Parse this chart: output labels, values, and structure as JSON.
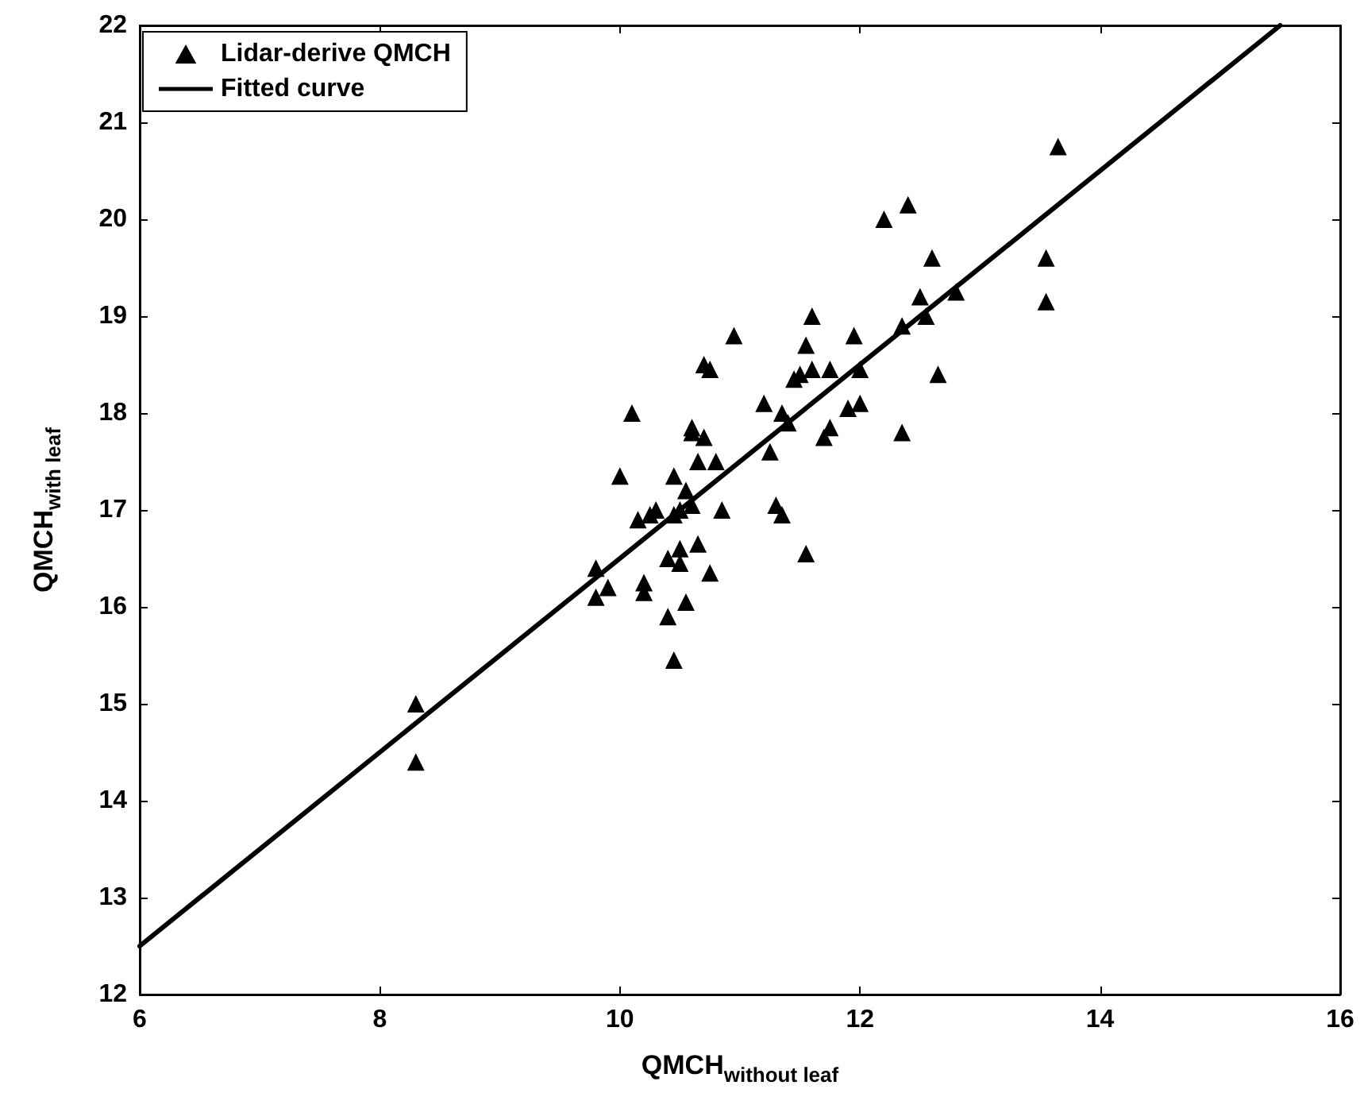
{
  "chart_data": {
    "type": "scatter",
    "xlabel": "QMCH$_{without leaf}$",
    "ylabel": "QMCH$_{with leaf}$",
    "xlim": [
      6,
      16
    ],
    "xticks": [
      6,
      8,
      10,
      12,
      14,
      16
    ],
    "ylim": [
      12,
      22
    ],
    "yticks": [
      12,
      13,
      14,
      15,
      16,
      17,
      18,
      19,
      20,
      21,
      22
    ],
    "grid": false,
    "legend": "top left",
    "marker": "triangle",
    "series": [
      {
        "name": "Lidar-derive QMCH",
        "color": "#000000",
        "x": [
          8.3,
          8.3,
          9.8,
          9.8,
          9.9,
          10.0,
          10.1,
          10.15,
          10.2,
          10.2,
          10.25,
          10.3,
          10.4,
          10.4,
          10.45,
          10.45,
          10.5,
          10.5,
          10.5,
          10.55,
          10.55,
          10.6,
          10.6,
          10.6,
          10.65,
          10.65,
          10.7,
          10.75,
          10.7,
          10.75,
          10.8,
          10.85,
          10.45,
          10.95,
          11.2,
          11.25,
          11.3,
          11.35,
          11.35,
          11.4,
          11.45,
          11.5,
          11.55,
          11.55,
          11.6,
          11.6,
          11.7,
          11.75,
          11.75,
          11.9,
          11.95,
          12.0,
          12.0,
          12.2,
          12.35,
          12.4,
          12.35,
          12.5,
          12.55,
          12.6,
          12.65,
          12.8,
          13.55,
          13.55,
          13.65
        ],
        "values": [
          15.0,
          14.4,
          16.4,
          16.1,
          16.2,
          17.35,
          18.0,
          16.9,
          16.15,
          16.25,
          16.95,
          17.0,
          16.5,
          15.9,
          17.35,
          16.95,
          16.6,
          16.45,
          17.0,
          16.05,
          17.2,
          17.05,
          17.8,
          17.85,
          17.5,
          16.65,
          17.75,
          16.35,
          18.5,
          18.45,
          17.5,
          17.0,
          15.45,
          18.8,
          18.1,
          17.6,
          17.05,
          16.95,
          18.0,
          17.9,
          18.35,
          18.4,
          16.55,
          18.7,
          19.0,
          18.45,
          17.75,
          17.85,
          18.45,
          18.05,
          18.8,
          18.45,
          18.1,
          20.0,
          18.9,
          20.15,
          17.8,
          19.2,
          19.0,
          19.6,
          18.4,
          19.25,
          19.6,
          19.15,
          20.75
        ]
      },
      {
        "name": "Fitted curve",
        "type": "line",
        "color": "#000000",
        "marker": "none",
        "line_style": "solid",
        "x": [
          6,
          15.5
        ],
        "values": [
          12.5,
          22
        ]
      }
    ]
  }
}
